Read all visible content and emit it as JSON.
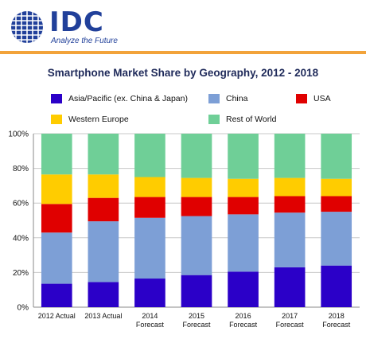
{
  "brand": {
    "name": "IDC",
    "tagline": "Analyze the Future",
    "colors": {
      "primary": "#21409a",
      "accent": "#f2a33a"
    }
  },
  "chart_data": {
    "type": "bar",
    "stacked": true,
    "title": "Smartphone Market Share by Geography, 2012 - 2018",
    "xlabel": "",
    "ylabel": "",
    "ylim": [
      0,
      100
    ],
    "y_ticks": [
      "0%",
      "20%",
      "40%",
      "60%",
      "80%",
      "100%"
    ],
    "categories": [
      [
        "2012 Actual"
      ],
      [
        "2013 Actual"
      ],
      [
        "2014",
        "Forecast"
      ],
      [
        "2015",
        "Forecast"
      ],
      [
        "2016",
        "Forecast"
      ],
      [
        "2017",
        "Forecast"
      ],
      [
        "2018",
        "Forecast"
      ]
    ],
    "legend_position": "top",
    "grid": true,
    "series": [
      {
        "name": "Asia/Pacific (ex. China & Japan)",
        "color": "#2b00c8",
        "values": [
          13.5,
          14.5,
          16.5,
          18.5,
          20.5,
          23,
          24
        ]
      },
      {
        "name": "China",
        "color": "#7d9fd6",
        "values": [
          29.5,
          35,
          35,
          34,
          33,
          31.5,
          31
        ]
      },
      {
        "name": "USA",
        "color": "#e00000",
        "values": [
          16.5,
          13.5,
          12,
          11,
          10,
          9.5,
          9
        ]
      },
      {
        "name": "Western Europe",
        "color": "#ffcc00",
        "values": [
          17,
          13.5,
          11.5,
          11,
          10.5,
          10.5,
          10
        ]
      },
      {
        "name": "Rest of World",
        "color": "#6fcf97",
        "values": [
          23.5,
          23.5,
          25,
          25.5,
          26,
          25.5,
          26
        ]
      }
    ]
  }
}
